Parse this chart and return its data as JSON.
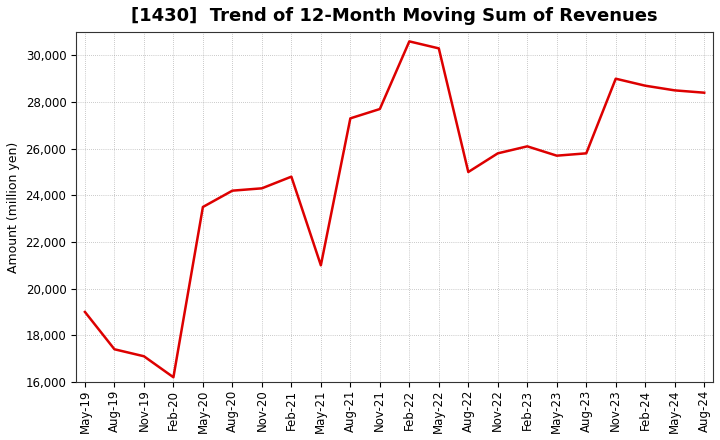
{
  "title": "[1430]  Trend of 12-Month Moving Sum of Revenues",
  "ylabel": "Amount (million yen)",
  "line_color": "#DD0000",
  "line_width": 1.8,
  "background_color": "#FFFFFF",
  "plot_bg_color": "#FFFFFF",
  "grid_color": "#999999",
  "ylim": [
    16000,
    31000
  ],
  "yticks": [
    16000,
    18000,
    20000,
    22000,
    24000,
    26000,
    28000,
    30000
  ],
  "values": [
    19000,
    17400,
    17100,
    16200,
    23500,
    24200,
    24300,
    24800,
    21000,
    27300,
    27700,
    30600,
    30300,
    25000,
    25800,
    26100,
    25700,
    25800,
    29000,
    28700,
    28500,
    28400
  ],
  "xtick_labels": [
    "May-19",
    "Aug-19",
    "Nov-19",
    "Feb-20",
    "May-20",
    "Aug-20",
    "Nov-20",
    "Feb-21",
    "May-21",
    "Aug-21",
    "Nov-21",
    "Feb-22",
    "May-22",
    "Aug-22",
    "Nov-22",
    "Feb-23",
    "May-23",
    "Aug-23",
    "Nov-23",
    "Feb-24",
    "May-24",
    "Aug-24"
  ],
  "title_fontsize": 13,
  "ylabel_fontsize": 9,
  "tick_fontsize": 8.5
}
